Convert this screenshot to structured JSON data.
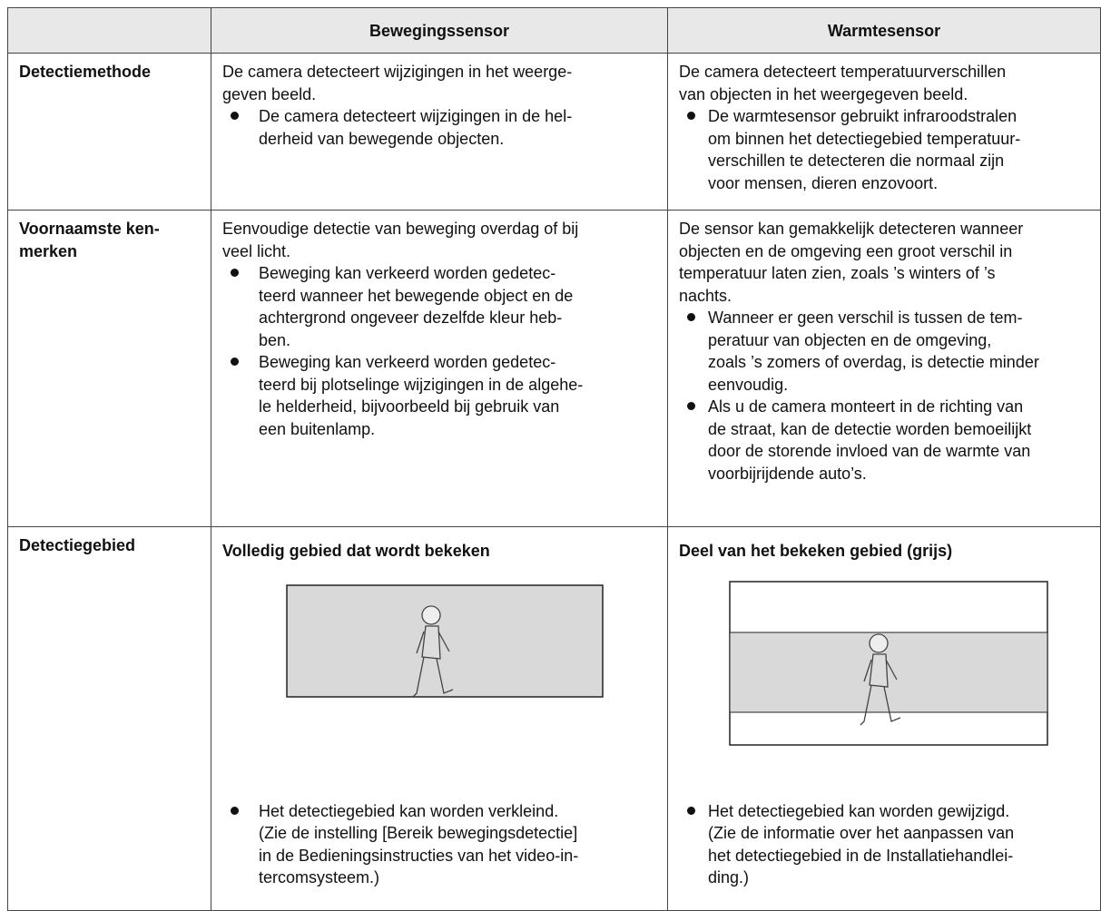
{
  "table": {
    "columns": [
      "Bewegingssensor",
      "Warmtesensor"
    ],
    "rows": [
      {
        "label": [
          "Detectiemethode"
        ],
        "cells": [
          {
            "intro": [
              "De camera detecteert wijzigingen in het weerge-",
              "geven beeld."
            ],
            "bullets": [
              [
                "De camera detecteert wijzigingen in de hel-",
                "derheid van bewegende objecten."
              ]
            ]
          },
          {
            "intro": [
              "De camera detecteert temperatuurverschillen",
              "van objecten in het weergegeven beeld."
            ],
            "bullets": [
              [
                "De warmtesensor gebruikt infraroodstralen",
                "om binnen het detectiegebied temperatuur-",
                "verschillen te detecteren die normaal zijn",
                "voor mensen, dieren enzovoort."
              ]
            ]
          }
        ]
      },
      {
        "label": [
          "Voornaamste ken-",
          "merken"
        ],
        "cells": [
          {
            "intro": [
              "Eenvoudige detectie van beweging overdag of bij",
              "veel licht."
            ],
            "bullets": [
              [
                "Beweging kan verkeerd worden gedetec-",
                "teerd wanneer het bewegende object en de",
                "achtergrond ongeveer dezelfde kleur heb-",
                "ben."
              ],
              [
                "Beweging kan verkeerd worden gedetec-",
                "teerd bij plotselinge wijzigingen in de algehe-",
                "le helderheid, bijvoorbeeld bij gebruik van",
                "een buitenlamp."
              ]
            ]
          },
          {
            "intro": [
              "De sensor kan gemakkelijk detecteren wanneer",
              "objecten en de omgeving een groot verschil in",
              "temperatuur laten zien, zoals ’s winters of ’s",
              "nachts."
            ],
            "bullets": [
              [
                "Wanneer er geen verschil is tussen de tem-",
                "peratuur van objecten en de omgeving,",
                "zoals ’s zomers of overdag, is detectie minder",
                "eenvoudig."
              ],
              [
                "Als u de camera monteert in de richting van",
                "de straat, kan de detectie worden bemoeilijkt",
                "door de storende invloed van de warmte van",
                "voorbijrijdende auto’s."
              ]
            ]
          }
        ]
      },
      {
        "label": [
          "Detectiegebied"
        ],
        "cells": [
          {
            "heading": "Volledig gebied dat wordt bekeken",
            "bullets": [
              [
                "Het detectiegebied kan worden verkleind.",
                "(Zie de instelling [Bereik bewegingsdetectie]",
                "in de Bedieningsinstructies van het video-in-",
                "tercomsysteem.)"
              ]
            ]
          },
          {
            "heading": "Deel van het bekeken gebied (grijs)",
            "bullets": [
              [
                "Het detectiegebied kan worden gewijzigd.",
                "(Zie de informatie over het aanpassen van",
                "het detectiegebied in de Installatiehandlei-",
                "ding.)"
              ]
            ]
          }
        ]
      }
    ]
  }
}
